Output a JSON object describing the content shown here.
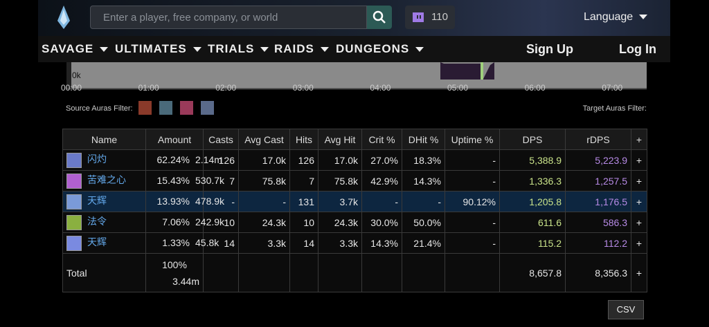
{
  "header": {
    "search_placeholder": "Enter a player, free company, or world",
    "twitch_count": "110",
    "language": "Language"
  },
  "nav": {
    "items": [
      "SAVAGE",
      "ULTIMATES",
      "TRIALS",
      "RAIDS",
      "DUNGEONS"
    ],
    "sign_up": "Sign Up",
    "log_in": "Log In"
  },
  "timeline": {
    "y_label": "0k",
    "x_labels": [
      "00:00",
      "01:00",
      "02:00",
      "03:00",
      "04:00",
      "05:00",
      "06:00",
      "07:00"
    ]
  },
  "filters": {
    "source": "Source Auras Filter:",
    "target": "Target Auras Filter:"
  },
  "table": {
    "columns": [
      "Name",
      "Amount",
      "Casts",
      "Avg Cast",
      "Hits",
      "Avg Hit",
      "Crit %",
      "DHit %",
      "Uptime %",
      "DPS",
      "rDPS",
      "+"
    ],
    "rows": [
      [
        "闪灼",
        "62.24%",
        "2.14m",
        "126",
        "17.0k",
        "126",
        "17.0k",
        "27.0%",
        "18.3%",
        "-",
        "5,388.9",
        "5,223.9",
        "+"
      ],
      [
        "苦难之心",
        "15.43%",
        "530.7k",
        "7",
        "75.8k",
        "7",
        "75.8k",
        "42.9%",
        "14.3%",
        "-",
        "1,336.3",
        "1,257.5",
        "+"
      ],
      [
        "天辉",
        "13.93%",
        "478.9k",
        "-",
        "-",
        "131",
        "3.7k",
        "-",
        "-",
        "90.12%",
        "1,205.8",
        "1,176.5",
        "+"
      ],
      [
        "法令",
        "7.06%",
        "242.9k",
        "10",
        "24.3k",
        "10",
        "24.3k",
        "30.0%",
        "50.0%",
        "-",
        "611.6",
        "586.3",
        "+"
      ],
      [
        "天辉",
        "1.33%",
        "45.8k",
        "14",
        "3.3k",
        "14",
        "3.3k",
        "14.3%",
        "21.4%",
        "-",
        "115.2",
        "112.2",
        "+"
      ]
    ],
    "total": {
      "name": "Total",
      "percent": "100%",
      "amount": "3.44m",
      "dps": "8,657.8",
      "rdps": "8,356.3",
      "action": "+"
    }
  },
  "csv": "CSV"
}
